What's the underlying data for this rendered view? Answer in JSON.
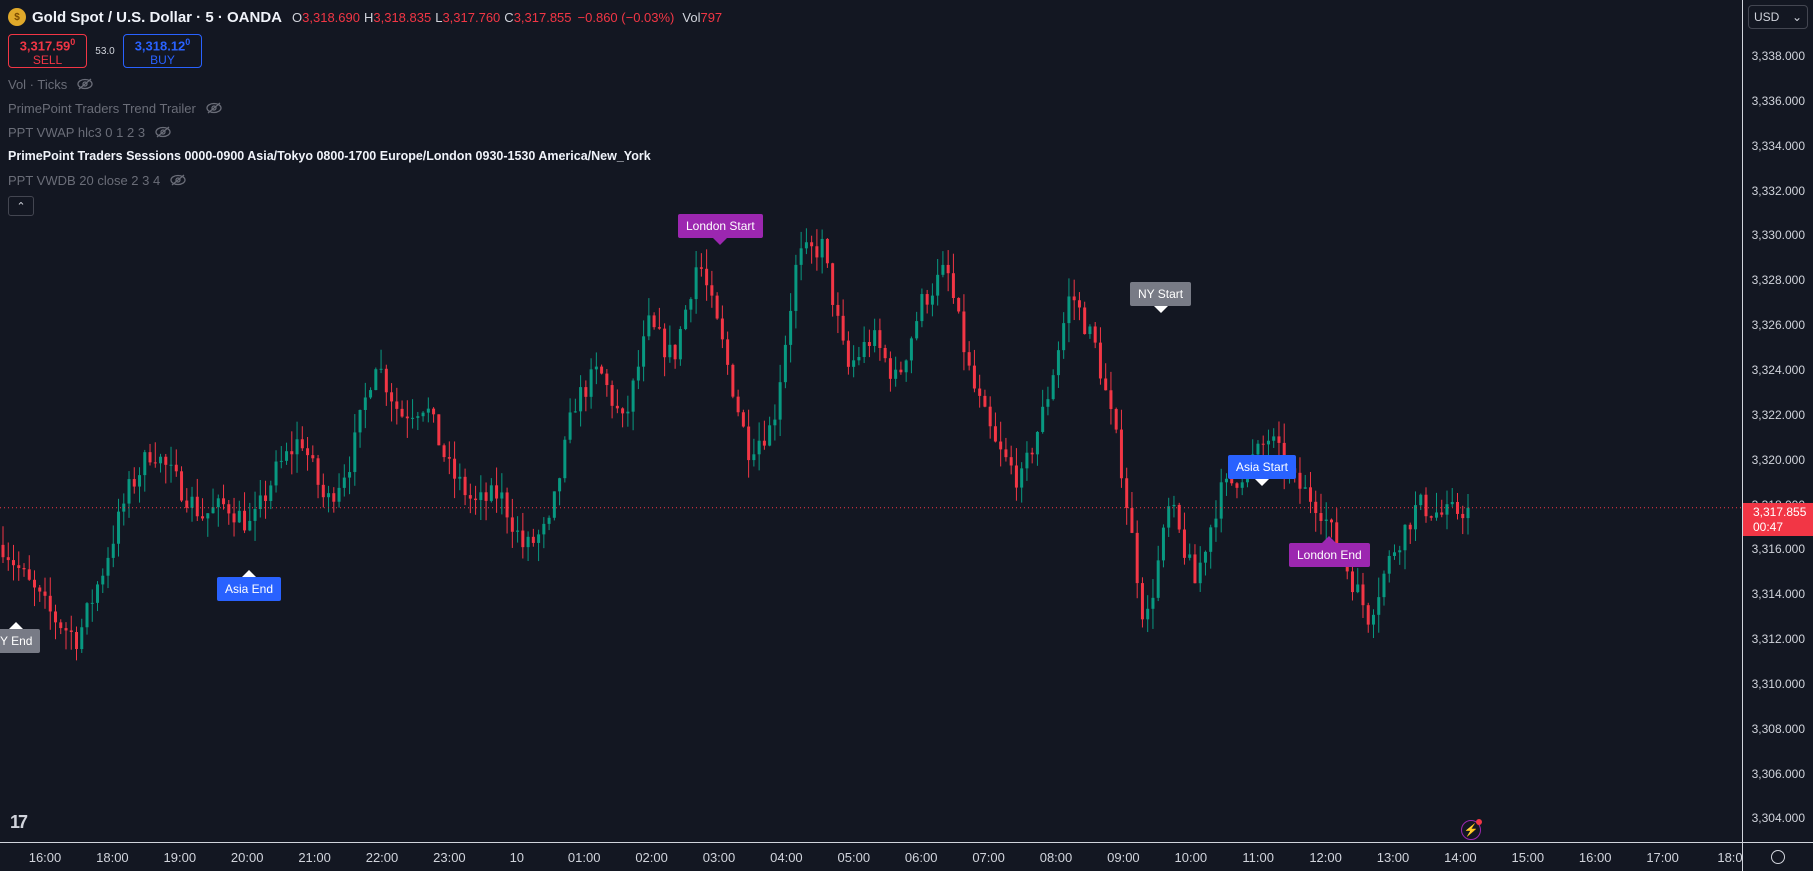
{
  "header": {
    "symbol_icon": "gold-coin-icon",
    "title": "Gold Spot / U.S. Dollar · 5 · OANDA",
    "o_label": "O",
    "o_value": "3,318.690",
    "h_label": "H",
    "h_value": "3,318.835",
    "l_label": "L",
    "l_value": "3,317.760",
    "c_label": "C",
    "c_value": "3,317.855",
    "change": "−0.860 (−0.03%)",
    "vol_label": "Vol",
    "vol_value": "797"
  },
  "trade": {
    "sell_price": "3,317.59",
    "sell_price_sup": "0",
    "sell_label": "SELL",
    "spread": "53.0",
    "buy_price": "3,318.12",
    "buy_price_sup": "0",
    "buy_label": "BUY"
  },
  "indicators": [
    {
      "label": "Vol · Ticks",
      "hidden": true
    },
    {
      "label": "PrimePoint Traders Trend Trailer",
      "hidden": true
    },
    {
      "label": "PPT VWAP hlc3 0 1 2 3",
      "hidden": true
    },
    {
      "label": "PrimePoint Traders Sessions 0000-0900 Asia/Tokyo 0800-1700 Europe/London 0930-1530 America/New_York",
      "hidden": false
    },
    {
      "label": "PPT VWDB 20 close 2 3 4",
      "hidden": true
    }
  ],
  "price_axis": {
    "currency": "USD",
    "ticks": [
      "3,338.000",
      "3,336.000",
      "3,334.000",
      "3,332.000",
      "3,330.000",
      "3,328.000",
      "3,326.000",
      "3,324.000",
      "3,322.000",
      "3,320.000",
      "3,318.000",
      "3,316.000",
      "3,314.000",
      "3,312.000",
      "3,310.000",
      "3,308.000",
      "3,306.000",
      "3,304.000"
    ],
    "last_price": "3,317.855",
    "countdown": "00:47"
  },
  "time_axis": {
    "ticks": [
      "16:00",
      "18:00",
      "19:00",
      "20:00",
      "21:00",
      "22:00",
      "23:00",
      "10",
      "01:00",
      "02:00",
      "03:00",
      "04:00",
      "05:00",
      "06:00",
      "07:00",
      "08:00",
      "09:00",
      "10:00",
      "11:00",
      "12:00",
      "13:00",
      "14:00",
      "15:00",
      "16:00",
      "17:00",
      "18:0"
    ]
  },
  "sessions": {
    "london_start": "London Start",
    "asia_end": "Asia End",
    "ny_end": "Y End",
    "ny_start": "NY Start",
    "asia_start": "Asia Start",
    "london_end": "London End"
  },
  "colors": {
    "up": "#089981",
    "down": "#f23645",
    "background": "#131722",
    "london": "#9c27b0",
    "asia": "#2962ff",
    "ny": "#787b86"
  },
  "chart_data": {
    "type": "candlestick",
    "ylim": [
      3303.5,
      3339.5
    ],
    "close_path": [
      3316.2,
      3314.5,
      3313.0,
      3312.0,
      3315.0,
      3318.5,
      3320.5,
      3319.0,
      3317.5,
      3318.0,
      3317.0,
      3319.5,
      3321.0,
      3318.0,
      3320.0,
      3324.5,
      3322.0,
      3322.5,
      3319.5,
      3318.0,
      3318.5,
      3316.0,
      3317.0,
      3322.5,
      3324.0,
      3321.5,
      3326.0,
      3324.5,
      3329.0,
      3325.0,
      3320.5,
      3321.5,
      3329.0,
      3329.5,
      3324.0,
      3325.5,
      3323.5,
      3327.0,
      3328.5,
      3323.5,
      3320.5,
      3319.0,
      3322.5,
      3327.5,
      3325.0,
      3320.0,
      3312.5,
      3318.0,
      3314.5,
      3318.5,
      3319.5,
      3321.0,
      3319.0,
      3318.0,
      3315.5,
      3313.0,
      3316.0,
      3318.0,
      3317.5,
      3317.855
    ],
    "last_close": 3317.855
  }
}
